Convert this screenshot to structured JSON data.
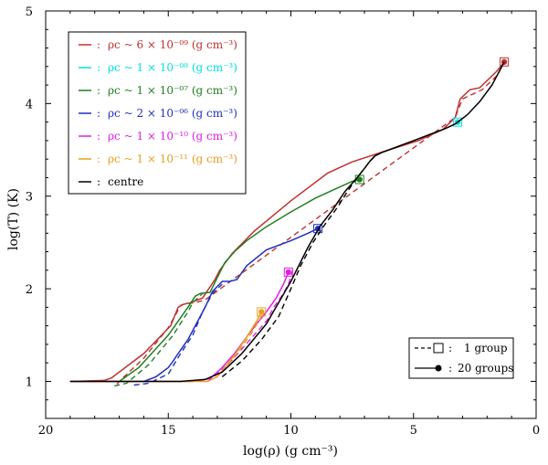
{
  "chart_data": {
    "type": "line",
    "xlabel": "log(ρ) (g cm⁻³)",
    "ylabel": "log(T) (K)",
    "xlim": [
      20,
      0
    ],
    "ylim": [
      0.6,
      5.0
    ],
    "x_ticks": [
      20,
      15,
      10,
      5,
      0
    ],
    "y_ticks": [
      1,
      2,
      3,
      4,
      5
    ],
    "legend_top_left": [
      {
        "label": "ρc ~ 6 × 10⁻⁰⁹ (g cm⁻³)",
        "color": "#c03030"
      },
      {
        "label": "ρc ~ 1 × 10⁻⁰⁸ (g cm⁻³)",
        "color": "#00e0e0"
      },
      {
        "label": "ρc ~ 1 × 10⁻⁰⁷ (g cm⁻³)",
        "color": "#208020"
      },
      {
        "label": "ρc ~ 2 × 10⁻⁰⁶ (g cm⁻³)",
        "color": "#2030c0"
      },
      {
        "label": "ρc ~ 1 × 10⁻¹⁰ (g cm⁻³)",
        "color": "#e020e0"
      },
      {
        "label": "ρc ~ 1 × 10⁻¹¹ (g cm⁻³)",
        "color": "#e8a020"
      },
      {
        "label": "centre",
        "color": "#000000"
      }
    ],
    "legend_bottom_right": [
      {
        "label": "1 group",
        "style": "dashed-square"
      },
      {
        "label": "20 groups",
        "style": "solid-dot"
      }
    ],
    "series": [
      {
        "name": "ρc ~ 6 × 10⁻⁰⁹",
        "color": "#c03030",
        "solid_x": [
          19.0,
          17.6,
          17.3,
          16.0,
          14.9,
          14.6,
          14.4,
          14.1,
          13.6,
          13.1,
          12.9,
          12.4,
          11.5,
          10.0,
          8.5,
          7.5,
          6.0,
          4.8,
          3.8,
          3.3,
          3.1,
          2.7,
          2.3,
          1.6,
          1.3
        ],
        "solid_y": [
          1.0,
          1.01,
          1.04,
          1.3,
          1.6,
          1.8,
          1.83,
          1.85,
          1.9,
          2.1,
          2.2,
          2.38,
          2.62,
          2.95,
          3.25,
          3.37,
          3.5,
          3.6,
          3.72,
          3.85,
          4.05,
          4.15,
          4.17,
          4.35,
          4.45
        ],
        "dashed_x": [
          17.1,
          16.8,
          16.0,
          15.0,
          14.7,
          14.5,
          14.3,
          13.9,
          13.5,
          3.3,
          3.0,
          2.6,
          2.2,
          1.6,
          1.3
        ],
        "dashed_y": [
          0.97,
          1.05,
          1.25,
          1.58,
          1.72,
          1.82,
          1.84,
          1.85,
          1.88,
          3.85,
          4.05,
          4.1,
          4.15,
          4.3,
          4.45
        ],
        "end_x": 1.3,
        "end_y": 4.45
      },
      {
        "name": "ρc ~ 1 × 10⁻⁰⁸",
        "color": "#00e0e0",
        "solid_x": [],
        "solid_y": [],
        "dashed_x": [],
        "dashed_y": [],
        "end_x": 3.2,
        "end_y": 3.8
      },
      {
        "name": "ρc ~ 1 × 10⁻⁰⁷",
        "color": "#208020",
        "solid_x": [
          19.0,
          17.5,
          17.2,
          17.0,
          16.2,
          15.0,
          14.2,
          13.9,
          13.7,
          13.3,
          13.0,
          12.7,
          12.3,
          11.8,
          11.0,
          10.0,
          9.0,
          8.0,
          7.5,
          7.2
        ],
        "solid_y": [
          1.0,
          1.0,
          1.0,
          1.0,
          1.15,
          1.5,
          1.8,
          1.92,
          1.95,
          1.96,
          2.12,
          2.28,
          2.4,
          2.52,
          2.67,
          2.83,
          2.98,
          3.1,
          3.16,
          3.18
        ],
        "dashed_x": [
          17.2,
          16.7,
          15.8,
          14.8,
          14.2,
          14.0,
          13.6
        ],
        "dashed_y": [
          0.95,
          0.98,
          1.18,
          1.5,
          1.75,
          1.85,
          1.95
        ],
        "end_x": 7.2,
        "end_y": 3.18
      },
      {
        "name": "ρc ~ 2 × 10⁻⁰⁶",
        "color": "#2030c0",
        "solid_x": [
          19.0,
          16.5,
          16.0,
          15.5,
          15.0,
          14.8,
          14.6,
          14.2,
          13.8,
          13.5,
          13.2,
          12.8,
          12.5,
          12.2,
          11.8,
          11.0,
          10.0,
          9.3,
          8.9
        ],
        "solid_y": [
          1.0,
          1.0,
          1.0,
          1.05,
          1.15,
          1.22,
          1.3,
          1.45,
          1.65,
          1.8,
          1.97,
          2.08,
          2.08,
          2.1,
          2.25,
          2.42,
          2.52,
          2.6,
          2.65
        ],
        "dashed_x": [
          16.4,
          15.8,
          15.0,
          14.5,
          14.0,
          13.6,
          13.2,
          12.8
        ],
        "dashed_y": [
          0.96,
          0.98,
          1.08,
          1.3,
          1.5,
          1.75,
          1.95,
          2.05
        ],
        "end_x": 8.9,
        "end_y": 2.65
      },
      {
        "name": "ρc ~ 1 × 10⁻¹⁰",
        "color": "#e020e0",
        "solid_x": [
          19.0,
          14.0,
          13.3,
          12.8,
          12.3,
          11.8,
          11.4,
          11.0,
          10.6,
          10.3,
          10.1
        ],
        "solid_y": [
          1.0,
          1.0,
          1.03,
          1.15,
          1.3,
          1.48,
          1.62,
          1.75,
          1.9,
          2.05,
          2.18
        ],
        "dashed_x": [
          13.4,
          13.0,
          12.5,
          12.0,
          11.5,
          11.0,
          10.7,
          10.3,
          10.1,
          9.9
        ],
        "dashed_y": [
          1.0,
          1.08,
          1.2,
          1.35,
          1.5,
          1.65,
          1.8,
          1.95,
          2.05,
          2.22
        ],
        "end_x": 10.1,
        "end_y": 2.18
      },
      {
        "name": "ρc ~ 1 × 10⁻¹¹",
        "color": "#e8a020",
        "solid_x": [
          19.0,
          13.4,
          13.0,
          12.6,
          12.2,
          11.8,
          11.4,
          11.2
        ],
        "solid_y": [
          1.0,
          1.0,
          1.05,
          1.18,
          1.32,
          1.48,
          1.65,
          1.75
        ],
        "dashed_x": [
          12.8,
          12.2,
          11.6,
          11.1
        ],
        "dashed_y": [
          1.1,
          1.3,
          1.52,
          1.75
        ],
        "end_x": 11.2,
        "end_y": 1.75
      },
      {
        "name": "centre",
        "color": "#000000",
        "solid_x": [
          19.0,
          14.5,
          13.5,
          12.8,
          12.0,
          11.0,
          10.0,
          9.3,
          8.8,
          8.3,
          7.8,
          7.3,
          7.0,
          6.8,
          6.6,
          6.3,
          5.8,
          5.0,
          4.3,
          3.7,
          3.3,
          2.8,
          2.3,
          1.8,
          1.3
        ],
        "solid_y": [
          1.0,
          1.0,
          1.02,
          1.1,
          1.3,
          1.62,
          2.08,
          2.45,
          2.68,
          2.85,
          3.05,
          3.2,
          3.3,
          3.37,
          3.43,
          3.47,
          3.52,
          3.6,
          3.67,
          3.73,
          3.78,
          3.88,
          4.02,
          4.2,
          4.45
        ],
        "dashed_x": [
          12.8,
          12.0,
          11.2,
          10.5,
          10.0,
          9.6,
          9.1,
          8.6,
          8.1,
          7.7,
          7.3,
          7.0,
          6.8,
          6.5
        ],
        "dashed_y": [
          1.05,
          1.22,
          1.45,
          1.7,
          2.0,
          2.25,
          2.5,
          2.7,
          2.88,
          3.05,
          3.2,
          3.3,
          3.37,
          3.45
        ],
        "end_x": null,
        "end_y": null
      }
    ]
  }
}
